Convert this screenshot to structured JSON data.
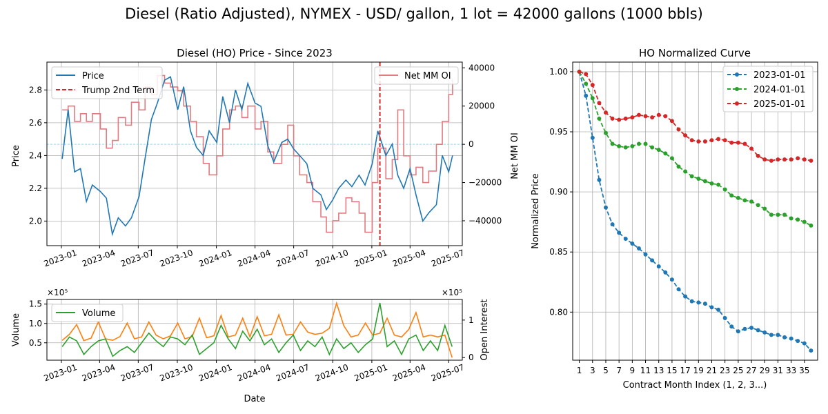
{
  "figure": {
    "suptitle": "Diesel (Ratio Adjusted), NYMEX - USD/ gallon, 1 lot = 42000 gallons (1000 bbls)"
  },
  "colors": {
    "price": "#1f77b4",
    "netmm": "#e37a80",
    "trump": "#d62728",
    "zero_line": "#7fe0f0",
    "volume": "#2ca02c",
    "open_interest": "#ff7f0e",
    "curve_2023": "#1f77b4",
    "curve_2024": "#2ca02c",
    "curve_2025": "#d62728",
    "grid": "#b0b0b0"
  },
  "chart_data": [
    {
      "id": "price_chart",
      "type": "line",
      "title": "Diesel (HO) Price - Since 2023",
      "xlabel": "",
      "ylabel": "Price",
      "ylabel_right": "Net MM OI",
      "x_ticks": [
        "2023-01",
        "2023-04",
        "2023-07",
        "2023-10",
        "2024-01",
        "2024-04",
        "2024-07",
        "2024-10",
        "2025-01",
        "2025-04",
        "2025-07"
      ],
      "xlim": [
        "2022-11-28",
        "2025-08-02"
      ],
      "ylim": [
        1.85,
        2.97
      ],
      "y_ticks": [
        2.0,
        2.2,
        2.4,
        2.6,
        2.8
      ],
      "y_ticks_labels": [
        "2.0",
        "2.2",
        "2.4",
        "2.6",
        "2.8"
      ],
      "ylim_right": [
        -53000,
        43000
      ],
      "y_ticks_right": [
        -40000,
        -20000,
        0,
        20000,
        40000
      ],
      "y_ticks_right_labels": [
        "−40000",
        "−20000",
        "0",
        "20000",
        "40000"
      ],
      "grid": true,
      "legend_left": {
        "placement": "top-left",
        "entries": [
          "Price",
          "Trump 2nd Term"
        ]
      },
      "legend_right": {
        "placement": "top-right",
        "entries": [
          "Net MM OI"
        ]
      },
      "trump_date": "2025-01-20",
      "zero_line": 0,
      "series": [
        {
          "name": "Price",
          "axis": "left",
          "x": [
            "2023-01-03",
            "2023-01-17",
            "2023-02-01",
            "2023-02-15",
            "2023-03-01",
            "2023-03-15",
            "2023-04-03",
            "2023-04-17",
            "2023-05-01",
            "2023-05-15",
            "2023-06-01",
            "2023-06-15",
            "2023-07-03",
            "2023-07-17",
            "2023-08-01",
            "2023-08-15",
            "2023-09-01",
            "2023-09-15",
            "2023-10-02",
            "2023-10-16",
            "2023-11-01",
            "2023-11-15",
            "2023-12-01",
            "2023-12-15",
            "2024-01-02",
            "2024-01-16",
            "2024-02-01",
            "2024-02-15",
            "2024-03-01",
            "2024-03-15",
            "2024-04-01",
            "2024-04-15",
            "2024-05-01",
            "2024-05-15",
            "2024-06-03",
            "2024-06-17",
            "2024-07-01",
            "2024-07-15",
            "2024-08-01",
            "2024-08-15",
            "2024-09-03",
            "2024-09-16",
            "2024-10-01",
            "2024-10-15",
            "2024-11-01",
            "2024-11-15",
            "2024-12-02",
            "2024-12-16",
            "2025-01-02",
            "2025-01-15",
            "2025-02-03",
            "2025-02-18",
            "2025-03-03",
            "2025-03-17",
            "2025-04-01",
            "2025-04-15",
            "2025-05-01",
            "2025-05-15",
            "2025-06-02",
            "2025-06-16",
            "2025-07-01",
            "2025-07-10"
          ],
          "y": [
            2.38,
            2.68,
            2.3,
            2.32,
            2.12,
            2.22,
            2.18,
            2.14,
            1.92,
            2.02,
            1.97,
            2.02,
            2.15,
            2.38,
            2.62,
            2.72,
            2.86,
            2.88,
            2.68,
            2.82,
            2.55,
            2.45,
            2.4,
            2.55,
            2.48,
            2.76,
            2.6,
            2.8,
            2.68,
            2.84,
            2.72,
            2.7,
            2.46,
            2.36,
            2.48,
            2.5,
            2.44,
            2.4,
            2.35,
            2.2,
            2.16,
            2.07,
            2.13,
            2.2,
            2.25,
            2.21,
            2.28,
            2.22,
            2.35,
            2.55,
            2.4,
            2.47,
            2.28,
            2.2,
            2.32,
            2.16,
            2.0,
            2.05,
            2.1,
            2.4,
            2.3,
            2.4
          ]
        },
        {
          "name": "Net MM OI",
          "axis": "right",
          "x": [
            "2023-01-03",
            "2023-01-17",
            "2023-02-01",
            "2023-02-15",
            "2023-03-01",
            "2023-03-15",
            "2023-04-03",
            "2023-04-17",
            "2023-05-01",
            "2023-05-15",
            "2023-06-01",
            "2023-06-15",
            "2023-07-03",
            "2023-07-17",
            "2023-08-01",
            "2023-08-15",
            "2023-09-01",
            "2023-09-15",
            "2023-10-02",
            "2023-10-16",
            "2023-11-01",
            "2023-11-15",
            "2023-12-01",
            "2023-12-15",
            "2024-01-02",
            "2024-01-16",
            "2024-02-01",
            "2024-02-15",
            "2024-03-01",
            "2024-03-15",
            "2024-04-01",
            "2024-04-15",
            "2024-05-01",
            "2024-05-15",
            "2024-06-03",
            "2024-06-17",
            "2024-07-01",
            "2024-07-15",
            "2024-08-01",
            "2024-08-15",
            "2024-09-03",
            "2024-09-16",
            "2024-10-01",
            "2024-10-15",
            "2024-11-01",
            "2024-11-15",
            "2024-12-02",
            "2024-12-16",
            "2025-01-02",
            "2025-01-15",
            "2025-02-03",
            "2025-02-18",
            "2025-03-03",
            "2025-03-17",
            "2025-04-01",
            "2025-04-15",
            "2025-05-01",
            "2025-05-15",
            "2025-06-02",
            "2025-06-16",
            "2025-07-01",
            "2025-07-10"
          ],
          "y": [
            18000,
            20000,
            12000,
            16000,
            12000,
            16000,
            8000,
            -2000,
            2000,
            14000,
            10000,
            22000,
            18000,
            30000,
            26000,
            36000,
            32000,
            30000,
            28000,
            20000,
            12000,
            4000,
            -10000,
            -16000,
            -6000,
            8000,
            18000,
            20000,
            14000,
            20000,
            8000,
            12000,
            -4000,
            -10000,
            0,
            10000,
            -6000,
            -16000,
            -20000,
            -30000,
            -38000,
            -46000,
            -40000,
            -36000,
            -28000,
            -30000,
            -36000,
            -46000,
            -20000,
            -2000,
            -18000,
            -8000,
            18000,
            -6000,
            -16000,
            -12000,
            -20000,
            -14000,
            0,
            12000,
            26000,
            34000
          ]
        }
      ]
    },
    {
      "id": "volume_chart",
      "type": "line",
      "xlabel": "Date",
      "ylabel": "Volume",
      "ylabel_right": "Open Interest",
      "offset_text_left": "×10⁵",
      "offset_text_right": "×10⁵",
      "x_ticks": [
        "2023-01",
        "2023-04",
        "2023-07",
        "2023-10",
        "2024-01",
        "2024-04",
        "2024-07",
        "2024-10",
        "2025-01",
        "2025-04",
        "2025-07"
      ],
      "xlim": [
        "2022-11-28",
        "2025-08-02"
      ],
      "ylim": [
        0.05,
        1.62
      ],
      "y_ticks": [
        0.5,
        1.0,
        1.5
      ],
      "y_ticks_labels": [
        "0.5",
        "1.0",
        "1.5"
      ],
      "ylim_right": [
        -0.07,
        1.55
      ],
      "y_ticks_right": [
        0,
        1
      ],
      "y_ticks_right_labels": [
        "0",
        "1"
      ],
      "grid": true,
      "legend": {
        "placement": "top-left",
        "entries": [
          "Volume"
        ]
      },
      "series": [
        {
          "name": "Volume",
          "axis": "left",
          "x": [
            "2023-01-03",
            "2023-01-20",
            "2023-02-06",
            "2023-02-23",
            "2023-03-12",
            "2023-03-29",
            "2023-04-15",
            "2023-05-02",
            "2023-05-19",
            "2023-06-05",
            "2023-06-22",
            "2023-07-09",
            "2023-07-26",
            "2023-08-12",
            "2023-08-29",
            "2023-09-15",
            "2023-10-02",
            "2023-10-19",
            "2023-11-05",
            "2023-11-22",
            "2023-12-09",
            "2023-12-26",
            "2024-01-12",
            "2024-01-29",
            "2024-02-15",
            "2024-03-03",
            "2024-03-20",
            "2024-04-06",
            "2024-04-23",
            "2024-05-10",
            "2024-05-27",
            "2024-06-13",
            "2024-06-30",
            "2024-07-17",
            "2024-08-03",
            "2024-08-20",
            "2024-09-06",
            "2024-09-23",
            "2024-10-10",
            "2024-10-27",
            "2024-11-13",
            "2024-11-30",
            "2024-12-17",
            "2025-01-03",
            "2025-01-20",
            "2025-02-06",
            "2025-02-23",
            "2025-03-12",
            "2025-03-29",
            "2025-04-15",
            "2025-05-02",
            "2025-05-19",
            "2025-06-05",
            "2025-06-22",
            "2025-07-09"
          ],
          "y": [
            0.4,
            0.65,
            0.55,
            0.2,
            0.4,
            0.55,
            0.6,
            0.15,
            0.3,
            0.4,
            0.25,
            0.5,
            0.75,
            0.55,
            0.4,
            0.65,
            0.6,
            0.45,
            0.7,
            0.2,
            0.35,
            0.5,
            0.95,
            0.6,
            0.35,
            0.8,
            0.55,
            0.85,
            0.45,
            0.6,
            0.25,
            0.5,
            0.7,
            0.3,
            0.55,
            0.4,
            0.65,
            0.2,
            0.6,
            0.35,
            0.5,
            0.25,
            0.45,
            0.6,
            1.53,
            0.4,
            0.55,
            0.2,
            0.6,
            0.7,
            0.3,
            0.55,
            0.3,
            0.95,
            0.4
          ]
        },
        {
          "name": "Open Interest",
          "axis": "right",
          "x": [
            "2023-01-03",
            "2023-01-20",
            "2023-02-06",
            "2023-02-23",
            "2023-03-12",
            "2023-03-29",
            "2023-04-15",
            "2023-05-02",
            "2023-05-19",
            "2023-06-05",
            "2023-06-22",
            "2023-07-09",
            "2023-07-26",
            "2023-08-12",
            "2023-08-29",
            "2023-09-15",
            "2023-10-02",
            "2023-10-19",
            "2023-11-05",
            "2023-11-22",
            "2023-12-09",
            "2023-12-26",
            "2024-01-12",
            "2024-01-29",
            "2024-02-15",
            "2024-03-03",
            "2024-03-20",
            "2024-04-06",
            "2024-04-23",
            "2024-05-10",
            "2024-05-27",
            "2024-06-13",
            "2024-06-30",
            "2024-07-17",
            "2024-08-03",
            "2024-08-20",
            "2024-09-06",
            "2024-09-23",
            "2024-10-10",
            "2024-10-27",
            "2024-11-13",
            "2024-11-30",
            "2024-12-17",
            "2025-01-03",
            "2025-01-20",
            "2025-02-06",
            "2025-02-23",
            "2025-03-12",
            "2025-03-29",
            "2025-04-15",
            "2025-05-02",
            "2025-05-19",
            "2025-06-05",
            "2025-06-22",
            "2025-07-09"
          ],
          "y": [
            0.46,
            0.62,
            0.88,
            0.45,
            0.52,
            0.95,
            0.5,
            0.46,
            0.56,
            0.92,
            0.5,
            0.55,
            0.95,
            0.6,
            0.5,
            0.58,
            0.92,
            0.5,
            0.56,
            1.05,
            0.53,
            0.58,
            1.12,
            0.55,
            0.6,
            1.05,
            0.55,
            1.09,
            0.58,
            0.62,
            1.14,
            0.6,
            0.62,
            0.95,
            0.68,
            0.62,
            0.65,
            0.78,
            1.45,
            0.85,
            0.55,
            0.6,
            0.92,
            0.6,
            0.65,
            1.05,
            0.6,
            0.55,
            0.75,
            1.2,
            0.55,
            0.6,
            0.55,
            0.6,
            0.0
          ]
        }
      ]
    },
    {
      "id": "curve_chart",
      "type": "line",
      "title": "HO Normalized Curve",
      "xlabel": "Contract Month Index (1, 2, 3...)",
      "ylabel": "Normalized Price",
      "xlim": [
        0.0,
        37.0
      ],
      "x_ticks": [
        1,
        3,
        5,
        7,
        9,
        11,
        13,
        15,
        17,
        19,
        21,
        23,
        25,
        27,
        29,
        31,
        33,
        35
      ],
      "ylim": [
        0.76,
        1.008
      ],
      "y_ticks": [
        0.8,
        0.85,
        0.9,
        0.95,
        1.0
      ],
      "y_ticks_labels": [
        "0.80",
        "0.85",
        "0.90",
        "0.95",
        "1.00"
      ],
      "grid": true,
      "legend": {
        "placement": "top-right",
        "entries": [
          "2023-01-01",
          "2024-01-01",
          "2025-01-01"
        ]
      },
      "series": [
        {
          "name": "2023-01-01",
          "x": [
            1,
            2,
            3,
            4,
            5,
            6,
            7,
            8,
            9,
            10,
            11,
            12,
            13,
            14,
            15,
            16,
            17,
            18,
            19,
            20,
            21,
            22,
            23,
            24,
            25,
            26,
            27,
            28,
            29,
            30,
            31,
            32,
            33,
            34,
            35,
            36
          ],
          "y": [
            1.0,
            0.98,
            0.945,
            0.91,
            0.887,
            0.873,
            0.866,
            0.861,
            0.857,
            0.853,
            0.848,
            0.843,
            0.838,
            0.833,
            0.827,
            0.819,
            0.813,
            0.809,
            0.808,
            0.807,
            0.804,
            0.802,
            0.795,
            0.788,
            0.784,
            0.786,
            0.787,
            0.785,
            0.783,
            0.781,
            0.781,
            0.779,
            0.778,
            0.776,
            0.774,
            0.768
          ]
        },
        {
          "name": "2024-01-01",
          "x": [
            1,
            2,
            3,
            4,
            5,
            6,
            7,
            8,
            9,
            10,
            11,
            12,
            13,
            14,
            15,
            16,
            17,
            18,
            19,
            20,
            21,
            22,
            23,
            24,
            25,
            26,
            27,
            28,
            29,
            30,
            31,
            32,
            33,
            34,
            35,
            36
          ],
          "y": [
            1.0,
            0.99,
            0.978,
            0.961,
            0.949,
            0.94,
            0.938,
            0.937,
            0.938,
            0.94,
            0.94,
            0.937,
            0.935,
            0.932,
            0.928,
            0.921,
            0.917,
            0.913,
            0.911,
            0.909,
            0.907,
            0.906,
            0.902,
            0.897,
            0.895,
            0.893,
            0.892,
            0.889,
            0.886,
            0.881,
            0.881,
            0.881,
            0.878,
            0.877,
            0.875,
            0.872
          ]
        },
        {
          "name": "2025-01-01",
          "x": [
            1,
            2,
            3,
            4,
            5,
            6,
            7,
            8,
            9,
            10,
            11,
            12,
            13,
            14,
            15,
            16,
            17,
            18,
            19,
            20,
            21,
            22,
            23,
            24,
            25,
            26,
            27,
            28,
            29,
            30,
            31,
            32,
            33,
            34,
            35,
            36
          ],
          "y": [
            1.0,
            0.998,
            0.989,
            0.974,
            0.966,
            0.961,
            0.96,
            0.961,
            0.962,
            0.964,
            0.963,
            0.962,
            0.964,
            0.963,
            0.959,
            0.952,
            0.947,
            0.943,
            0.942,
            0.942,
            0.943,
            0.944,
            0.943,
            0.941,
            0.941,
            0.94,
            0.936,
            0.93,
            0.927,
            0.926,
            0.927,
            0.927,
            0.927,
            0.928,
            0.927,
            0.926
          ]
        }
      ]
    }
  ]
}
